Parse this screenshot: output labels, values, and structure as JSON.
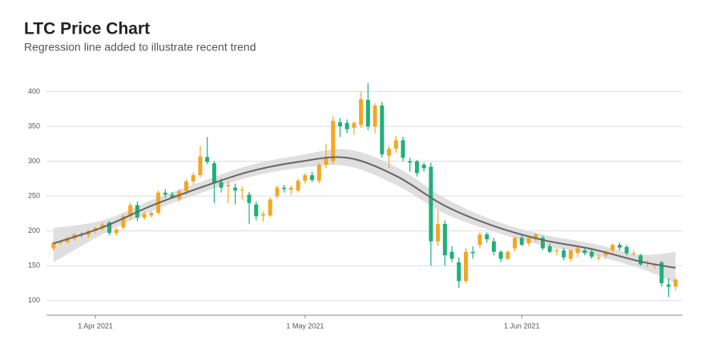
{
  "chart_data": {
    "type": "candlestick",
    "title": "LTC Price Chart",
    "subtitle": "Regression line added to illustrate recent trend",
    "x": [
      "2021-03-26",
      "2021-03-27",
      "2021-03-28",
      "2021-03-29",
      "2021-03-30",
      "2021-03-31",
      "2021-04-01",
      "2021-04-02",
      "2021-04-03",
      "2021-04-04",
      "2021-04-05",
      "2021-04-06",
      "2021-04-07",
      "2021-04-08",
      "2021-04-09",
      "2021-04-10",
      "2021-04-11",
      "2021-04-12",
      "2021-04-13",
      "2021-04-14",
      "2021-04-15",
      "2021-04-16",
      "2021-04-17",
      "2021-04-18",
      "2021-04-19",
      "2021-04-20",
      "2021-04-21",
      "2021-04-22",
      "2021-04-23",
      "2021-04-24",
      "2021-04-25",
      "2021-04-26",
      "2021-04-27",
      "2021-04-28",
      "2021-04-29",
      "2021-04-30",
      "2021-05-01",
      "2021-05-02",
      "2021-05-03",
      "2021-05-04",
      "2021-05-05",
      "2021-05-06",
      "2021-05-07",
      "2021-05-08",
      "2021-05-09",
      "2021-05-10",
      "2021-05-11",
      "2021-05-12",
      "2021-05-13",
      "2021-05-14",
      "2021-05-15",
      "2021-05-16",
      "2021-05-17",
      "2021-05-18",
      "2021-05-19",
      "2021-05-20",
      "2021-05-21",
      "2021-05-22",
      "2021-05-23",
      "2021-05-24",
      "2021-05-25",
      "2021-05-26",
      "2021-05-27",
      "2021-05-28",
      "2021-05-29",
      "2021-05-30",
      "2021-05-31",
      "2021-06-01",
      "2021-06-02",
      "2021-06-03",
      "2021-06-04",
      "2021-06-05",
      "2021-06-06",
      "2021-06-07",
      "2021-06-08",
      "2021-06-09",
      "2021-06-10",
      "2021-06-11",
      "2021-06-12",
      "2021-06-13",
      "2021-06-14",
      "2021-06-15",
      "2021-06-16",
      "2021-06-17",
      "2021-06-18",
      "2021-06-19",
      "2021-06-20",
      "2021-06-21",
      "2021-06-22",
      "2021-06-23"
    ],
    "open": [
      175,
      183,
      184,
      189,
      195,
      194,
      200,
      204,
      212,
      197,
      205,
      221,
      237,
      219,
      222,
      226,
      255,
      252,
      246,
      257,
      271,
      280,
      306,
      297,
      270,
      264,
      262,
      258,
      252,
      238,
      222,
      222,
      250,
      262,
      259,
      258,
      272,
      280,
      272,
      295,
      300,
      356,
      355,
      348,
      352,
      388,
      350,
      380,
      308,
      318,
      330,
      300,
      300,
      295,
      292,
      185,
      210,
      170,
      155,
      128,
      170,
      180,
      195,
      185,
      170,
      160,
      175,
      190,
      182,
      188,
      190,
      178,
      172,
      172,
      160,
      168,
      172,
      170,
      162,
      165,
      172,
      180,
      177,
      168,
      165,
      154,
      150,
      155,
      123,
      120
    ],
    "high": [
      185,
      186,
      192,
      197,
      198,
      202,
      206,
      212,
      214,
      204,
      224,
      240,
      242,
      228,
      228,
      258,
      260,
      256,
      260,
      274,
      284,
      322,
      335,
      300,
      275,
      272,
      268,
      264,
      256,
      242,
      228,
      248,
      265,
      266,
      265,
      275,
      283,
      285,
      298,
      325,
      365,
      362,
      360,
      358,
      400,
      412,
      383,
      385,
      322,
      336,
      335,
      305,
      302,
      298,
      298,
      230,
      215,
      178,
      162,
      175,
      178,
      198,
      198,
      190,
      172,
      172,
      192,
      195,
      192,
      197,
      193,
      182,
      175,
      176,
      174,
      177,
      176,
      173,
      166,
      172,
      182,
      183,
      180,
      172,
      167,
      158,
      153,
      157,
      132,
      132
    ],
    "low": [
      172,
      180,
      182,
      186,
      191,
      190,
      196,
      200,
      194,
      193,
      202,
      216,
      214,
      216,
      219,
      223,
      248,
      246,
      243,
      252,
      266,
      276,
      296,
      240,
      255,
      240,
      238,
      245,
      210,
      215,
      213,
      220,
      246,
      255,
      252,
      255,
      268,
      270,
      268,
      290,
      296,
      335,
      340,
      338,
      348,
      345,
      340,
      305,
      290,
      312,
      300,
      285,
      278,
      285,
      150,
      178,
      150,
      155,
      118,
      125,
      160,
      175,
      183,
      165,
      155,
      158,
      170,
      178,
      178,
      185,
      172,
      168,
      165,
      158,
      156,
      162,
      165,
      160,
      158,
      160,
      168,
      172,
      165,
      164,
      150,
      148,
      145,
      120,
      105,
      115
    ],
    "close": [
      183,
      184,
      189,
      195,
      194,
      200,
      204,
      209,
      197,
      202,
      221,
      237,
      219,
      224,
      226,
      255,
      252,
      248,
      257,
      271,
      280,
      307,
      299,
      268,
      262,
      266,
      258,
      259,
      240,
      221,
      224,
      245,
      262,
      260,
      262,
      272,
      280,
      273,
      295,
      304,
      358,
      350,
      346,
      355,
      389,
      350,
      380,
      310,
      318,
      330,
      305,
      298,
      283,
      290,
      185,
      210,
      165,
      160,
      128,
      170,
      168,
      195,
      188,
      170,
      160,
      170,
      190,
      180,
      190,
      195,
      175,
      170,
      172,
      162,
      172,
      175,
      168,
      163,
      162,
      170,
      180,
      176,
      168,
      168,
      152,
      155,
      151,
      125,
      120,
      130
    ],
    "up_color": "#f5a623",
    "down_color": "#1fb07a",
    "xlim": [
      "2021-03-25",
      "2021-06-24"
    ],
    "xticks": [
      {
        "value": "2021-04-01",
        "label": "1 Apr 2021"
      },
      {
        "value": "2021-05-01",
        "label": "1 May 2021"
      },
      {
        "value": "2021-06-01",
        "label": "1 Jun 2021"
      }
    ],
    "ylim": [
      79,
      420
    ],
    "yticks": [
      100,
      150,
      200,
      250,
      300,
      350,
      400
    ],
    "grid": true,
    "trend": {
      "color": "#666666",
      "band_color": "#dcdcdc",
      "x": [
        "2021-03-26",
        "2021-04-02",
        "2021-04-09",
        "2021-04-16",
        "2021-04-23",
        "2021-04-30",
        "2021-05-07",
        "2021-05-14",
        "2021-05-21",
        "2021-05-28",
        "2021-06-04",
        "2021-06-11",
        "2021-06-18",
        "2021-06-23"
      ],
      "values": [
        182,
        205,
        236,
        262,
        285,
        299,
        305,
        279,
        236,
        207,
        187,
        174,
        156,
        147
      ],
      "upper": [
        204,
        215,
        244,
        270,
        294,
        308,
        317,
        292,
        247,
        215,
        195,
        182,
        166,
        170
      ],
      "lower": [
        155,
        195,
        228,
        254,
        277,
        290,
        293,
        266,
        225,
        199,
        179,
        166,
        146,
        125
      ]
    }
  }
}
